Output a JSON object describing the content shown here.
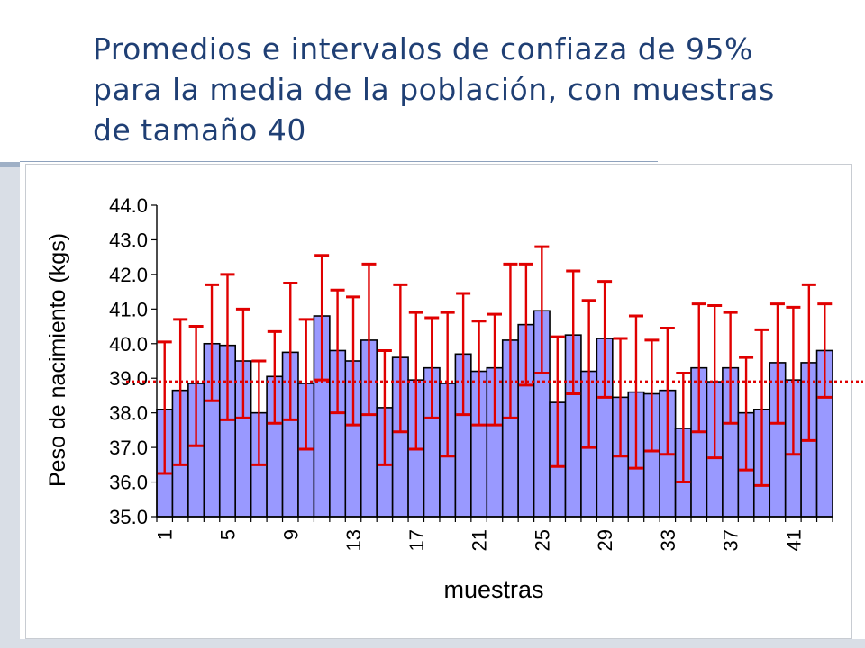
{
  "title": {
    "lines": [
      "Promedios e intervalos de confiaza de 95%",
      "para la media de la población, con muestras",
      "de tamaño 40"
    ]
  },
  "colors": {
    "bar_fill": "#9999ff",
    "bar_stroke": "#000000",
    "error_bar": "#e00000",
    "reference_line": "#e00000",
    "title": "#1f3f74"
  },
  "chart_data": {
    "type": "bar",
    "title": "",
    "xlabel": "muestras",
    "ylabel": "Peso de nacimiento (kgs)",
    "ylim": [
      35.0,
      44.0
    ],
    "yticks": [
      "35.0",
      "36.0",
      "37.0",
      "38.0",
      "39.0",
      "40.0",
      "41.0",
      "42.0",
      "43.0",
      "44.0"
    ],
    "x_tick_labels": [
      "1",
      "5",
      "9",
      "13",
      "17",
      "21",
      "25",
      "29",
      "33",
      "37",
      "41"
    ],
    "x_tick_every": 4,
    "reference_line": 38.9,
    "categories": [
      1,
      2,
      3,
      4,
      5,
      6,
      7,
      8,
      9,
      10,
      11,
      12,
      13,
      14,
      15,
      16,
      17,
      18,
      19,
      20,
      21,
      22,
      23,
      24,
      25,
      26,
      27,
      28,
      29,
      30,
      31,
      32,
      33,
      34,
      35,
      36,
      37,
      38,
      39,
      40,
      41,
      42,
      43
    ],
    "values": [
      38.1,
      38.65,
      38.85,
      40.0,
      39.95,
      39.5,
      38.0,
      39.05,
      39.75,
      38.85,
      40.8,
      39.8,
      39.5,
      40.1,
      38.15,
      39.6,
      38.95,
      39.3,
      38.85,
      39.7,
      39.2,
      39.3,
      40.1,
      40.55,
      40.95,
      38.3,
      40.25,
      39.2,
      40.15,
      38.45,
      38.6,
      38.55,
      38.65,
      37.55,
      39.3,
      38.9,
      39.3,
      38.0,
      38.1,
      39.45,
      38.95,
      39.45,
      39.8
    ],
    "ci_lower": [
      36.25,
      36.5,
      37.05,
      38.35,
      37.8,
      37.85,
      36.5,
      37.7,
      37.8,
      36.95,
      38.95,
      38.0,
      37.65,
      37.95,
      36.5,
      37.45,
      36.95,
      37.85,
      36.75,
      37.95,
      37.65,
      37.65,
      37.85,
      38.8,
      39.15,
      36.45,
      38.55,
      37.0,
      38.45,
      36.75,
      36.4,
      36.9,
      36.8,
      36.0,
      37.45,
      36.7,
      37.7,
      36.35,
      35.9,
      37.7,
      36.8,
      37.2,
      38.45
    ],
    "ci_upper": [
      40.05,
      40.7,
      40.5,
      41.7,
      42.0,
      41.0,
      39.5,
      40.35,
      41.75,
      40.7,
      42.55,
      41.55,
      41.35,
      42.3,
      39.8,
      41.7,
      40.9,
      40.75,
      40.9,
      41.45,
      40.65,
      40.85,
      42.3,
      42.3,
      42.8,
      40.2,
      42.1,
      41.25,
      41.8,
      40.15,
      40.8,
      40.1,
      40.45,
      39.15,
      41.15,
      41.1,
      40.9,
      39.6,
      40.4,
      41.15,
      41.05,
      41.7,
      41.15
    ]
  }
}
